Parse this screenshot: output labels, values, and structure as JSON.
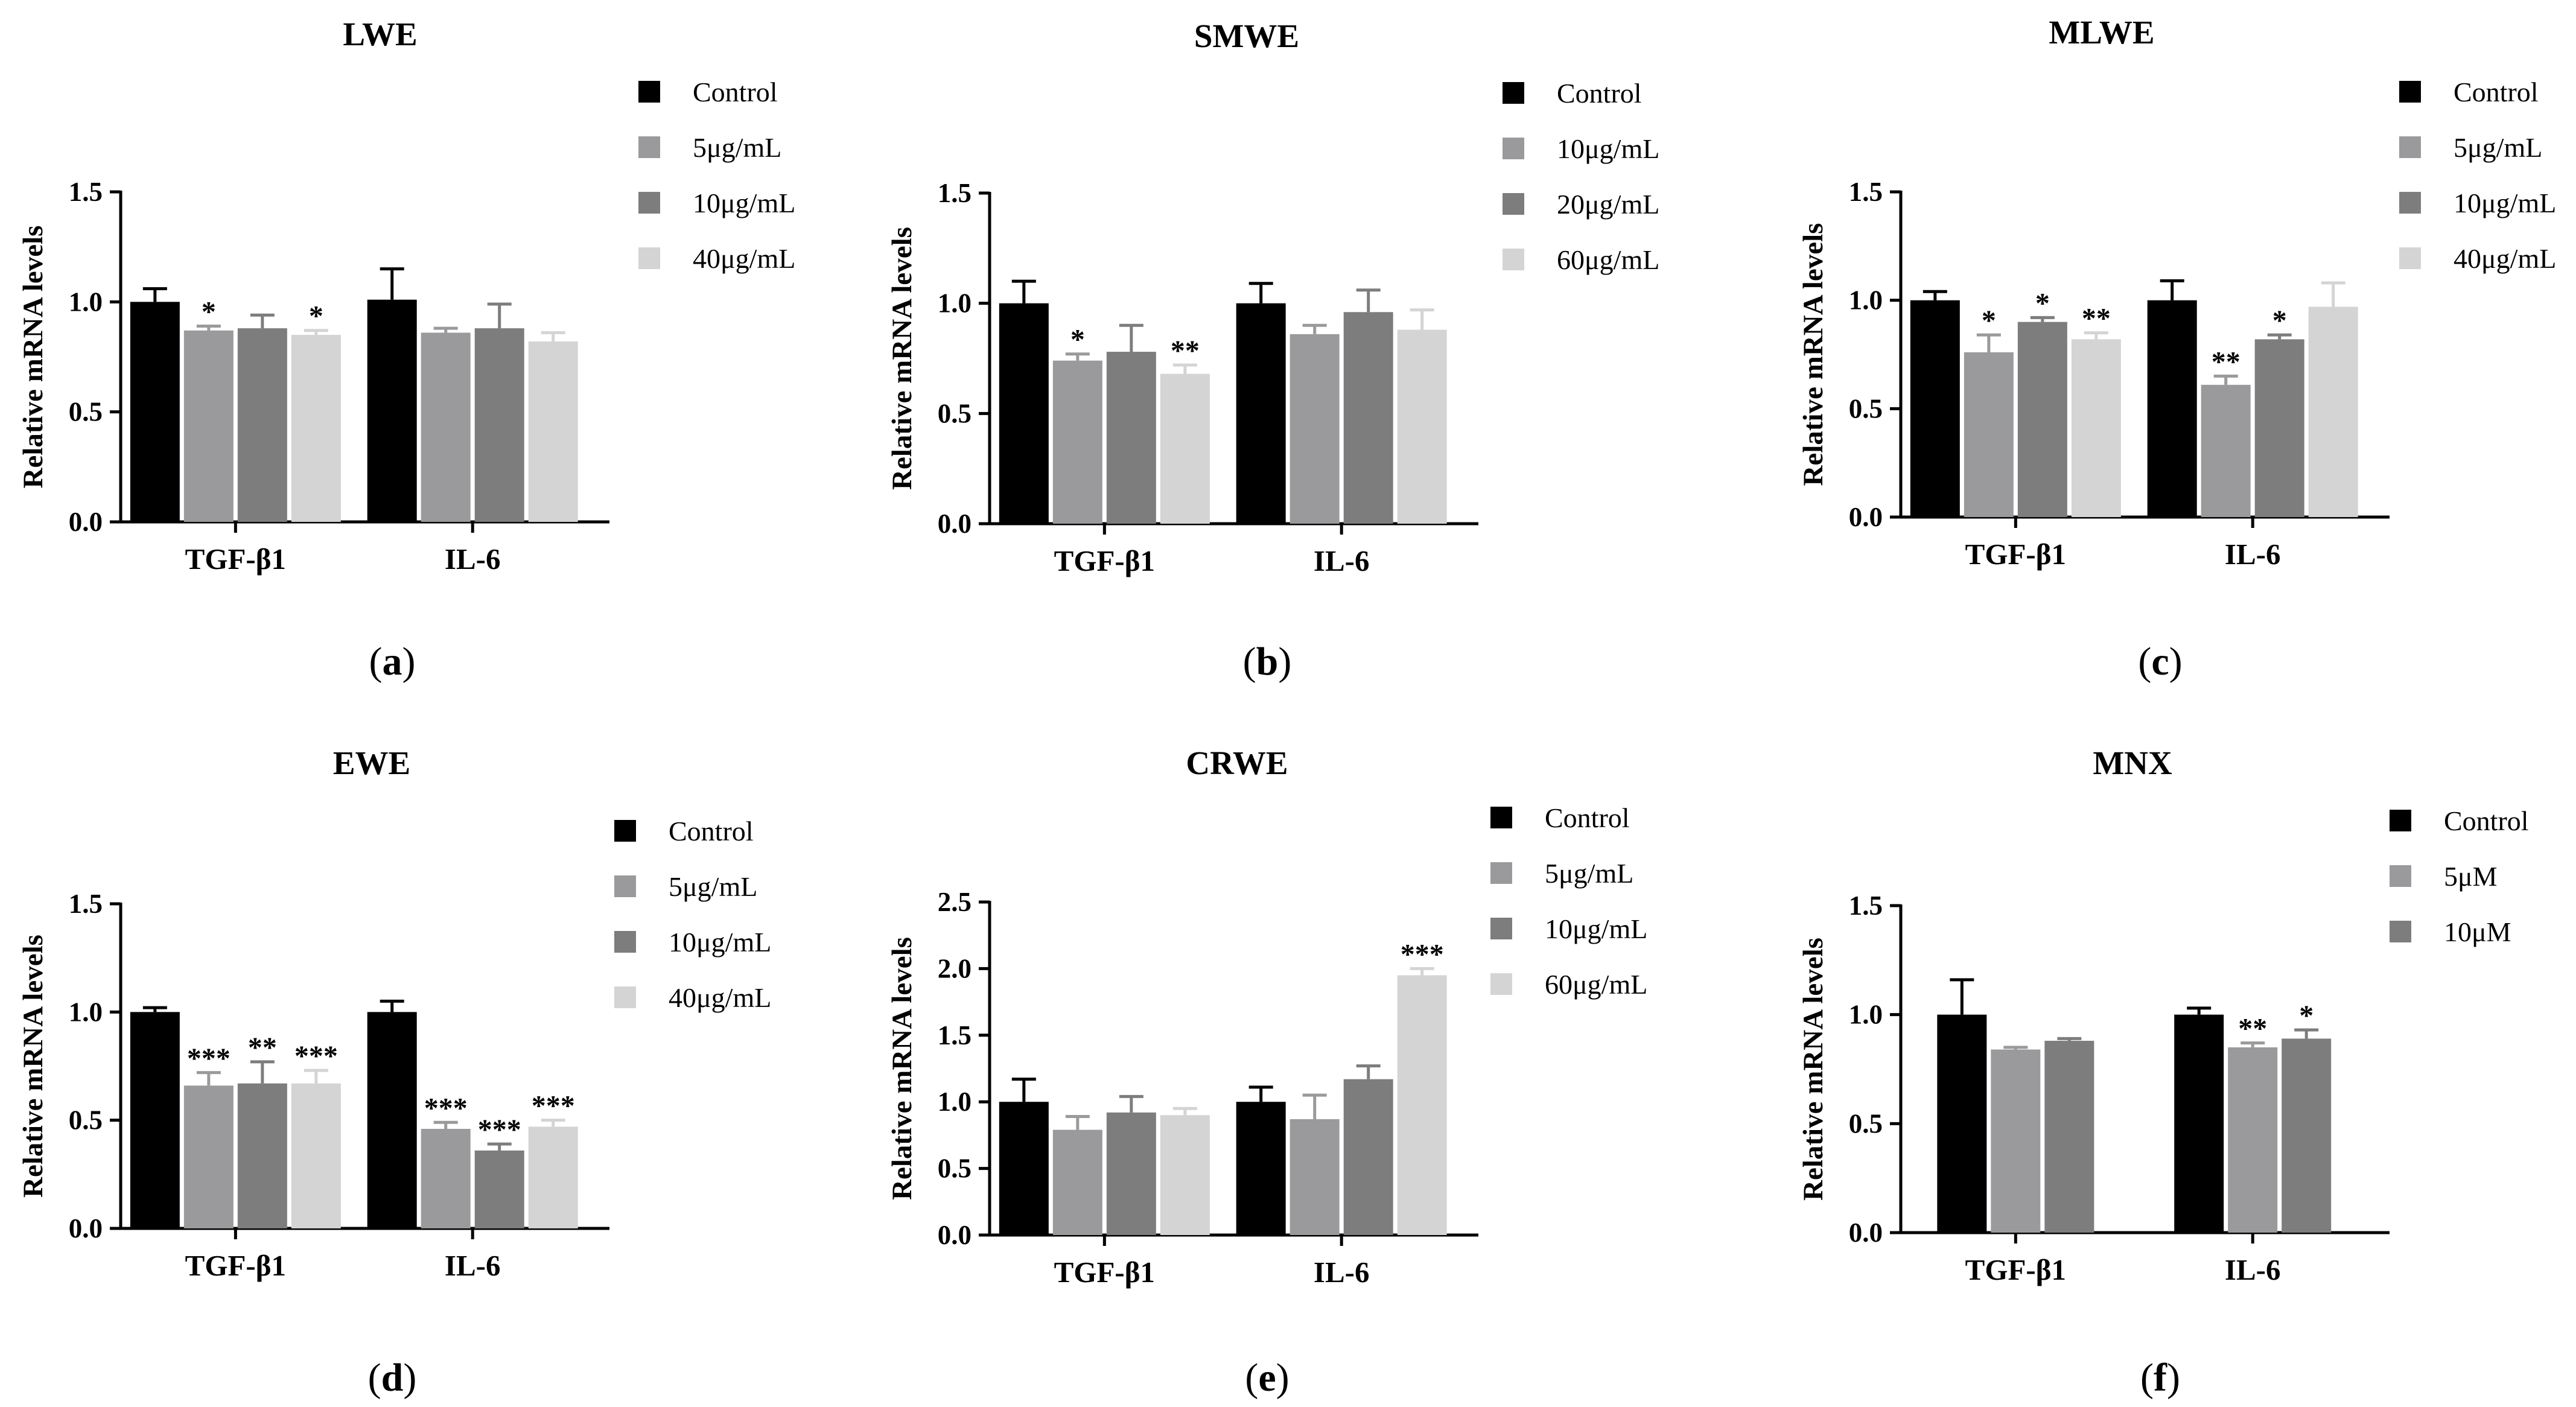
{
  "colors": {
    "Control": "#000000",
    "dose1": "#9a9a9c",
    "dose2": "#7d7d7d",
    "dose3": "#d4d4d4"
  },
  "chart_data": [
    {
      "type": "bar",
      "panel": "(a)",
      "title": "LWE",
      "ylabel": "Relative mRNA levels",
      "ylim": [
        0,
        1.5
      ],
      "yticks": [
        "0.0",
        "0.5",
        "1.0",
        "1.5"
      ],
      "categories": [
        "TGF-β1",
        "IL-6"
      ],
      "series": [
        {
          "name": "Control",
          "values": [
            1.0,
            1.01
          ],
          "errors": [
            0.06,
            0.14
          ],
          "stars": [
            "",
            ""
          ]
        },
        {
          "name": "5μg/mL",
          "values": [
            0.87,
            0.86
          ],
          "errors": [
            0.02,
            0.02
          ],
          "stars": [
            "*",
            ""
          ]
        },
        {
          "name": "10μg/mL",
          "values": [
            0.88,
            0.88
          ],
          "errors": [
            0.06,
            0.11
          ],
          "stars": [
            "",
            ""
          ]
        },
        {
          "name": "40μg/mL",
          "values": [
            0.85,
            0.82
          ],
          "errors": [
            0.02,
            0.04
          ],
          "stars": [
            "*",
            ""
          ]
        }
      ]
    },
    {
      "type": "bar",
      "panel": "(b)",
      "title": "SMWE",
      "ylabel": "Relative mRNA levels",
      "ylim": [
        0,
        1.5
      ],
      "yticks": [
        "0.0",
        "0.5",
        "1.0",
        "1.5"
      ],
      "categories": [
        "TGF-β1",
        "IL-6"
      ],
      "series": [
        {
          "name": "Control",
          "values": [
            1.0,
            1.0
          ],
          "errors": [
            0.1,
            0.09
          ],
          "stars": [
            "",
            ""
          ]
        },
        {
          "name": "10μg/mL",
          "values": [
            0.74,
            0.86
          ],
          "errors": [
            0.03,
            0.04
          ],
          "stars": [
            "*",
            ""
          ]
        },
        {
          "name": "20μg/mL",
          "values": [
            0.78,
            0.96
          ],
          "errors": [
            0.12,
            0.1
          ],
          "stars": [
            "",
            ""
          ]
        },
        {
          "name": "60μg/mL",
          "values": [
            0.68,
            0.88
          ],
          "errors": [
            0.04,
            0.09
          ],
          "stars": [
            "**",
            ""
          ]
        }
      ]
    },
    {
      "type": "bar",
      "panel": "(c)",
      "title": "MLWE",
      "ylabel": "Relative mRNA levels",
      "ylim": [
        0,
        1.5
      ],
      "yticks": [
        "0.0",
        "0.5",
        "1.0",
        "1.5"
      ],
      "categories": [
        "TGF-β1",
        "IL-6"
      ],
      "series": [
        {
          "name": "Control",
          "values": [
            1.0,
            1.0
          ],
          "errors": [
            0.04,
            0.09
          ],
          "stars": [
            "",
            ""
          ]
        },
        {
          "name": "5μg/mL",
          "values": [
            0.76,
            0.61
          ],
          "errors": [
            0.08,
            0.04
          ],
          "stars": [
            "*",
            "**"
          ]
        },
        {
          "name": "10μg/mL",
          "values": [
            0.9,
            0.82
          ],
          "errors": [
            0.02,
            0.02
          ],
          "stars": [
            "*",
            "*"
          ]
        },
        {
          "name": "40μg/mL",
          "values": [
            0.82,
            0.97
          ],
          "errors": [
            0.03,
            0.11
          ],
          "stars": [
            "**",
            ""
          ]
        }
      ]
    },
    {
      "type": "bar",
      "panel": "(d)",
      "title": "EWE",
      "ylabel": "Relative mRNA levels",
      "ylim": [
        0,
        1.5
      ],
      "yticks": [
        "0.0",
        "0.5",
        "1.0",
        "1.5"
      ],
      "categories": [
        "TGF-β1",
        "IL-6"
      ],
      "series": [
        {
          "name": "Control",
          "values": [
            1.0,
            1.0
          ],
          "errors": [
            0.02,
            0.05
          ],
          "stars": [
            "",
            ""
          ]
        },
        {
          "name": "5μg/mL",
          "values": [
            0.66,
            0.46
          ],
          "errors": [
            0.06,
            0.03
          ],
          "stars": [
            "***",
            "***"
          ]
        },
        {
          "name": "10μg/mL",
          "values": [
            0.67,
            0.36
          ],
          "errors": [
            0.1,
            0.03
          ],
          "stars": [
            "**",
            "***"
          ]
        },
        {
          "name": "40μg/mL",
          "values": [
            0.67,
            0.47
          ],
          "errors": [
            0.06,
            0.03
          ],
          "stars": [
            "***",
            "***"
          ]
        }
      ]
    },
    {
      "type": "bar",
      "panel": "(e)",
      "title": "CRWE",
      "ylabel": "Relative mRNA levels",
      "ylim": [
        0,
        2.5
      ],
      "yticks": [
        "0.0",
        "0.5",
        "1.0",
        "1.5",
        "2.0",
        "2.5"
      ],
      "categories": [
        "TGF-β1",
        "IL-6"
      ],
      "series": [
        {
          "name": "Control",
          "values": [
            1.0,
            1.0
          ],
          "errors": [
            0.17,
            0.11
          ],
          "stars": [
            "",
            ""
          ]
        },
        {
          "name": "5μg/mL",
          "values": [
            0.79,
            0.87
          ],
          "errors": [
            0.1,
            0.18
          ],
          "stars": [
            "",
            ""
          ]
        },
        {
          "name": "10μg/mL",
          "values": [
            0.92,
            1.17
          ],
          "errors": [
            0.12,
            0.1
          ],
          "stars": [
            "",
            ""
          ]
        },
        {
          "name": "60μg/mL",
          "values": [
            0.9,
            1.95
          ],
          "errors": [
            0.05,
            0.05
          ],
          "stars": [
            "",
            "***"
          ]
        }
      ]
    },
    {
      "type": "bar",
      "panel": "(f)",
      "title": "MNX",
      "ylabel": "Relative mRNA levels",
      "ylim": [
        0,
        1.5
      ],
      "yticks": [
        "0.0",
        "0.5",
        "1.0",
        "1.5"
      ],
      "categories": [
        "TGF-β1",
        "IL-6"
      ],
      "series": [
        {
          "name": "Control",
          "values": [
            1.0,
            1.0
          ],
          "errors": [
            0.16,
            0.03
          ],
          "stars": [
            "",
            ""
          ]
        },
        {
          "name": "5μM",
          "values": [
            0.84,
            0.85
          ],
          "errors": [
            0.01,
            0.02
          ],
          "stars": [
            "",
            "**"
          ]
        },
        {
          "name": "10μM",
          "values": [
            0.88,
            0.89
          ],
          "errors": [
            0.01,
            0.04
          ],
          "stars": [
            "",
            "*"
          ]
        }
      ]
    }
  ]
}
